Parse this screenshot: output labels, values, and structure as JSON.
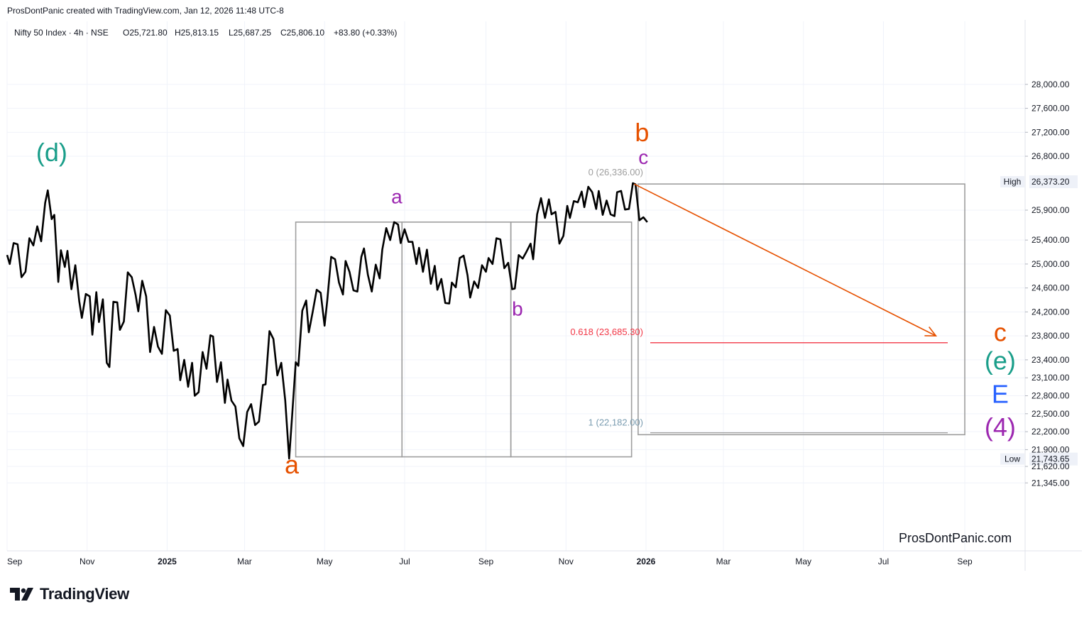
{
  "header": {
    "credit": "ProsDontPanic created with TradingView.com, Jan 12, 2026 11:48 UTC-8"
  },
  "legend": {
    "symbol": "Nifty 50 Index · 4h · NSE",
    "open": "O25,721.80",
    "high": "H25,813.15",
    "low": "L25,687.25",
    "close": "C25,806.10",
    "change": "+83.80 (+0.33%)"
  },
  "watermark": "ProsDontPanic.com",
  "brand": {
    "name": "TradingView",
    "icon": "tradingview-logo-icon"
  },
  "colors": {
    "price_line": "#000000",
    "orange": "#e65100",
    "purple": "#9c27b0",
    "teal": "#1a9e8a",
    "blue": "#2962ff",
    "fib_red": "#f23645",
    "box_gray": "#9e9e9e",
    "grid": "#f0f3fa",
    "axis_text": "#131722"
  },
  "chart_data": {
    "type": "line",
    "title": "Nifty 50 Index · 4h · NSE",
    "x_start": "2024-09-01",
    "x_ticks": [
      {
        "date": "2024-09-01",
        "label": "Sep"
      },
      {
        "date": "2024-11-01",
        "label": "Nov"
      },
      {
        "date": "2025-01-01",
        "label": "2025"
      },
      {
        "date": "2025-03-01",
        "label": "Mar"
      },
      {
        "date": "2025-05-01",
        "label": "May"
      },
      {
        "date": "2025-07-01",
        "label": "Jul"
      },
      {
        "date": "2025-09-01",
        "label": "Sep"
      },
      {
        "date": "2025-11-01",
        "label": "Nov"
      },
      {
        "date": "2026-01-01",
        "label": "2026"
      },
      {
        "date": "2026-03-01",
        "label": "Mar"
      },
      {
        "date": "2026-05-01",
        "label": "May"
      },
      {
        "date": "2026-07-01",
        "label": "Jul"
      },
      {
        "date": "2026-09-01",
        "label": "Sep"
      }
    ],
    "y_ticks": [
      28000,
      27600,
      27200,
      26800,
      26373.2,
      25900,
      25400,
      25000,
      24600,
      24200,
      23800,
      23400,
      23100,
      22800,
      22500,
      22200,
      21900,
      21743.65,
      21620,
      21345
    ],
    "y_tick_labels": [
      "28,000.00",
      "27,600.00",
      "27,200.00",
      "26,800.00",
      "26,373.20",
      "25,900.00",
      "25,400.00",
      "25,000.00",
      "24,600.00",
      "24,200.00",
      "23,800.00",
      "23,400.00",
      "23,100.00",
      "22,800.00",
      "22,500.00",
      "22,200.00",
      "21,900.00",
      "21,743.65",
      "21,620.00",
      "21,345.00"
    ],
    "price_badges": [
      {
        "label": "High",
        "value": "26,373.20",
        "price": 26373.2
      },
      {
        "label": "Low",
        "value": "21,743.65",
        "price": 21743.65
      }
    ],
    "series": [
      {
        "color": "#000000",
        "points": [
          [
            "2024-09-01",
            25150
          ],
          [
            "2024-09-03",
            25000
          ],
          [
            "2024-09-06",
            25350
          ],
          [
            "2024-09-09",
            25330
          ],
          [
            "2024-09-12",
            24780
          ],
          [
            "2024-09-15",
            24870
          ],
          [
            "2024-09-18",
            25430
          ],
          [
            "2024-09-21",
            25310
          ],
          [
            "2024-09-24",
            25630
          ],
          [
            "2024-09-27",
            25380
          ],
          [
            "2024-09-30",
            26020
          ],
          [
            "2024-10-02",
            26230
          ],
          [
            "2024-10-05",
            25750
          ],
          [
            "2024-10-07",
            25820
          ],
          [
            "2024-10-10",
            24700
          ],
          [
            "2024-10-12",
            25230
          ],
          [
            "2024-10-15",
            24950
          ],
          [
            "2024-10-17",
            25220
          ],
          [
            "2024-10-20",
            24580
          ],
          [
            "2024-10-23",
            24980
          ],
          [
            "2024-10-26",
            24380
          ],
          [
            "2024-10-28",
            24100
          ],
          [
            "2024-10-31",
            24500
          ],
          [
            "2024-11-03",
            24460
          ],
          [
            "2024-11-05",
            23820
          ],
          [
            "2024-11-08",
            24530
          ],
          [
            "2024-11-10",
            24030
          ],
          [
            "2024-11-13",
            24410
          ],
          [
            "2024-11-16",
            23350
          ],
          [
            "2024-11-18",
            23280
          ],
          [
            "2024-11-21",
            24370
          ],
          [
            "2024-11-24",
            24360
          ],
          [
            "2024-11-26",
            23900
          ],
          [
            "2024-11-29",
            24040
          ],
          [
            "2024-12-02",
            24860
          ],
          [
            "2024-12-05",
            24780
          ],
          [
            "2024-12-08",
            24480
          ],
          [
            "2024-12-10",
            24210
          ],
          [
            "2024-12-13",
            24720
          ],
          [
            "2024-12-16",
            24460
          ],
          [
            "2024-12-19",
            23530
          ],
          [
            "2024-12-22",
            23950
          ],
          [
            "2024-12-25",
            23620
          ],
          [
            "2024-12-28",
            23500
          ],
          [
            "2024-12-31",
            24230
          ],
          [
            "2025-01-03",
            24140
          ],
          [
            "2025-01-06",
            23550
          ],
          [
            "2025-01-09",
            23580
          ],
          [
            "2025-01-11",
            23060
          ],
          [
            "2025-01-14",
            23400
          ],
          [
            "2025-01-17",
            22950
          ],
          [
            "2025-01-20",
            23350
          ],
          [
            "2025-01-22",
            22800
          ],
          [
            "2025-01-25",
            22860
          ],
          [
            "2025-01-28",
            23530
          ],
          [
            "2025-01-31",
            23250
          ],
          [
            "2025-02-03",
            23810
          ],
          [
            "2025-02-05",
            23790
          ],
          [
            "2025-02-08",
            23030
          ],
          [
            "2025-02-11",
            23360
          ],
          [
            "2025-02-14",
            22680
          ],
          [
            "2025-02-16",
            23070
          ],
          [
            "2025-02-19",
            22720
          ],
          [
            "2025-02-22",
            22620
          ],
          [
            "2025-02-25",
            22090
          ],
          [
            "2025-02-28",
            21960
          ],
          [
            "2025-03-03",
            22530
          ],
          [
            "2025-03-06",
            22660
          ],
          [
            "2025-03-09",
            22310
          ],
          [
            "2025-03-12",
            22370
          ],
          [
            "2025-03-15",
            22980
          ],
          [
            "2025-03-17",
            22990
          ],
          [
            "2025-03-20",
            23880
          ],
          [
            "2025-03-23",
            23750
          ],
          [
            "2025-03-26",
            23140
          ],
          [
            "2025-03-29",
            23350
          ],
          [
            "2025-04-01",
            22720
          ],
          [
            "2025-04-04",
            21750
          ],
          [
            "2025-04-06",
            22380
          ],
          [
            "2025-04-09",
            23360
          ],
          [
            "2025-04-11",
            23300
          ],
          [
            "2025-04-14",
            24220
          ],
          [
            "2025-04-17",
            24390
          ],
          [
            "2025-04-19",
            23860
          ],
          [
            "2025-04-22",
            24210
          ],
          [
            "2025-04-25",
            24570
          ],
          [
            "2025-04-28",
            24520
          ],
          [
            "2025-05-01",
            23970
          ],
          [
            "2025-05-03",
            24380
          ],
          [
            "2025-05-06",
            25120
          ],
          [
            "2025-05-09",
            25080
          ],
          [
            "2025-05-12",
            24690
          ],
          [
            "2025-05-15",
            24490
          ],
          [
            "2025-05-17",
            25050
          ],
          [
            "2025-05-20",
            24870
          ],
          [
            "2025-05-23",
            24560
          ],
          [
            "2025-05-26",
            24540
          ],
          [
            "2025-05-29",
            25120
          ],
          [
            "2025-05-31",
            25260
          ],
          [
            "2025-06-03",
            24820
          ],
          [
            "2025-06-06",
            24540
          ],
          [
            "2025-06-09",
            24990
          ],
          [
            "2025-06-12",
            24760
          ],
          [
            "2025-06-14",
            25240
          ],
          [
            "2025-06-17",
            25600
          ],
          [
            "2025-06-20",
            25400
          ],
          [
            "2025-06-23",
            25700
          ],
          [
            "2025-06-26",
            25660
          ],
          [
            "2025-06-28",
            25350
          ],
          [
            "2025-07-01",
            25580
          ],
          [
            "2025-07-04",
            25370
          ],
          [
            "2025-07-07",
            25370
          ],
          [
            "2025-07-10",
            25000
          ],
          [
            "2025-07-12",
            25270
          ],
          [
            "2025-07-15",
            24870
          ],
          [
            "2025-07-18",
            25240
          ],
          [
            "2025-07-21",
            24670
          ],
          [
            "2025-07-24",
            24970
          ],
          [
            "2025-07-26",
            24570
          ],
          [
            "2025-07-29",
            24750
          ],
          [
            "2025-08-01",
            24350
          ],
          [
            "2025-08-04",
            24340
          ],
          [
            "2025-08-06",
            24690
          ],
          [
            "2025-08-09",
            24610
          ],
          [
            "2025-08-12",
            25100
          ],
          [
            "2025-08-15",
            25140
          ],
          [
            "2025-08-18",
            24810
          ],
          [
            "2025-08-20",
            24440
          ],
          [
            "2025-08-23",
            24710
          ],
          [
            "2025-08-26",
            24600
          ],
          [
            "2025-08-29",
            24980
          ],
          [
            "2025-09-01",
            24870
          ],
          [
            "2025-09-03",
            25100
          ],
          [
            "2025-09-06",
            25000
          ],
          [
            "2025-09-09",
            25430
          ],
          [
            "2025-09-12",
            25410
          ],
          [
            "2025-09-15",
            24930
          ],
          [
            "2025-09-18",
            25020
          ],
          [
            "2025-09-21",
            24580
          ],
          [
            "2025-09-23",
            24590
          ],
          [
            "2025-09-26",
            25150
          ],
          [
            "2025-09-29",
            25090
          ],
          [
            "2025-10-02",
            25210
          ],
          [
            "2025-10-05",
            25340
          ],
          [
            "2025-10-07",
            25080
          ],
          [
            "2025-10-10",
            25830
          ],
          [
            "2025-10-13",
            26100
          ],
          [
            "2025-10-16",
            25770
          ],
          [
            "2025-10-19",
            26080
          ],
          [
            "2025-10-21",
            25830
          ],
          [
            "2025-10-24",
            25870
          ],
          [
            "2025-10-27",
            25340
          ],
          [
            "2025-10-30",
            25470
          ],
          [
            "2025-11-02",
            25970
          ],
          [
            "2025-11-04",
            25770
          ],
          [
            "2025-11-07",
            26050
          ],
          [
            "2025-11-10",
            26030
          ],
          [
            "2025-11-13",
            26210
          ],
          [
            "2025-11-15",
            25950
          ],
          [
            "2025-11-18",
            26290
          ],
          [
            "2025-11-21",
            26200
          ],
          [
            "2025-11-24",
            25920
          ],
          [
            "2025-11-26",
            26220
          ],
          [
            "2025-11-29",
            25820
          ],
          [
            "2025-12-02",
            26060
          ],
          [
            "2025-12-05",
            25830
          ],
          [
            "2025-12-08",
            25800
          ],
          [
            "2025-12-10",
            26200
          ],
          [
            "2025-12-13",
            26220
          ],
          [
            "2025-12-16",
            25910
          ],
          [
            "2025-12-19",
            25920
          ],
          [
            "2025-12-22",
            26350
          ],
          [
            "2025-12-24",
            26330
          ],
          [
            "2025-12-27",
            25730
          ],
          [
            "2025-12-30",
            25780
          ],
          [
            "2026-01-02",
            25700
          ]
        ]
      }
    ],
    "fib_levels": [
      {
        "ratio_label": "0 (26,336.00)",
        "price": 26336.0
      },
      {
        "ratio_label": "0.618 (23,685.30)",
        "price": 23685.3
      },
      {
        "ratio_label": "1 (22,182.00)",
        "price": 22182.0
      }
    ],
    "projection": {
      "from": [
        "2025-12-23",
        26336.0
      ],
      "to": [
        "2026-08-10",
        23800
      ]
    },
    "boxes": [
      {
        "x0": "2025-04-09",
        "x1": "2025-06-29",
        "y0": 21780,
        "y1": 25700
      },
      {
        "x0": "2025-06-29",
        "x1": "2025-09-20",
        "y0": 21780,
        "y1": 25700
      },
      {
        "x0": "2025-09-20",
        "x1": "2025-12-21",
        "y0": 21780,
        "y1": 25700
      },
      {
        "x0": "2025-12-26",
        "x1": "2026-09-01",
        "y0": 22150,
        "y1": 26336
      }
    ],
    "wave_labels": [
      {
        "text": "(d)",
        "date": "2024-10-05",
        "price": 26720,
        "color": "#1a9e8a",
        "size": "large"
      },
      {
        "text": "a",
        "date": "2025-04-06",
        "price": 21500,
        "color": "#e65100",
        "size": "large"
      },
      {
        "text": "a",
        "date": "2025-06-25",
        "price": 26010,
        "color": "#9c27b0",
        "size": "medium"
      },
      {
        "text": "b",
        "date": "2025-09-25",
        "price": 24140,
        "color": "#9c27b0",
        "size": "medium"
      },
      {
        "text": "b",
        "date": "2025-12-29",
        "price": 27050,
        "color": "#e65100",
        "size": "large"
      },
      {
        "text": "c",
        "date": "2025-12-30",
        "price": 26670,
        "color": "#9c27b0",
        "size": "medium"
      },
      {
        "text": "c",
        "date": "2026-09-28",
        "price": 23710,
        "color": "#e65100",
        "size": "large"
      },
      {
        "text": "(e)",
        "date": "2026-09-28",
        "price": 23240,
        "color": "#1a9e8a",
        "size": "large"
      },
      {
        "text": "E",
        "date": "2026-09-28",
        "price": 22680,
        "color": "#2962ff",
        "size": "large"
      },
      {
        "text": "(4)",
        "date": "2026-09-28",
        "price": 22130,
        "color": "#9c27b0",
        "size": "large"
      }
    ]
  }
}
